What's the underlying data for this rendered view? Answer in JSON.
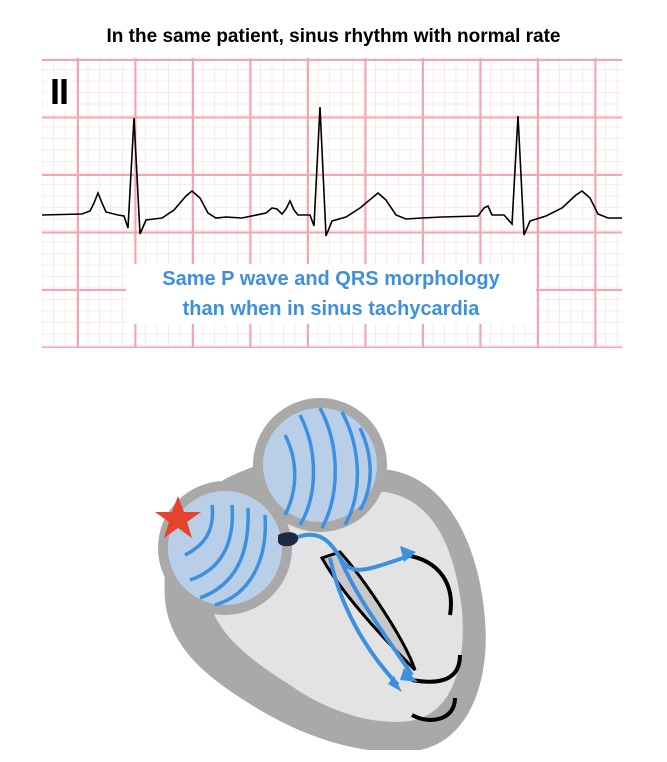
{
  "title": "In the same patient, sinus rhythm with normal rate",
  "ecg": {
    "lead_label": "II",
    "grid_color": "#f2a7b0",
    "trace_color": "#000000"
  },
  "caption": {
    "line1": "Same P wave and QRS morphology",
    "line2": "than when in sinus tachycardia",
    "color": "#3d8fe0"
  },
  "diagram": {
    "star_color": "#e5432b",
    "conduction_color": "#3d8fe0",
    "atrium_fill": "#b9cfe8",
    "heart_outer_color": "#a9a9a9",
    "heart_inner_color": "#e3e3e3"
  }
}
